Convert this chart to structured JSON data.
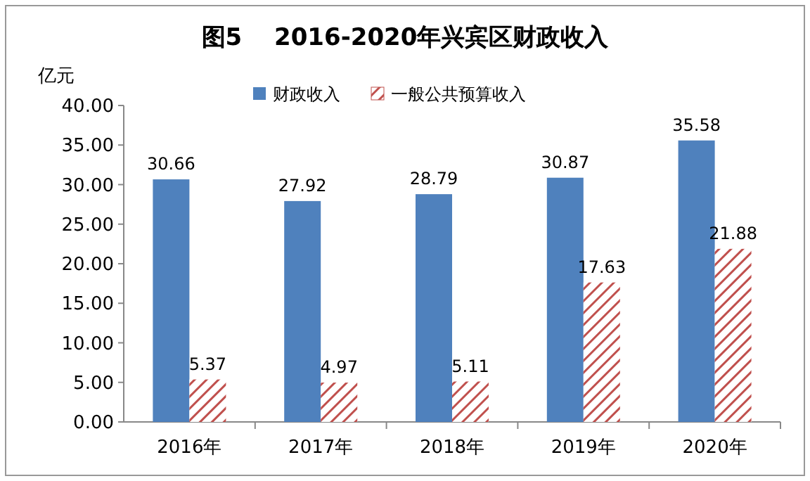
{
  "chart_data": {
    "type": "bar",
    "title": "图5　 2016-2020年兴宾区财政收入",
    "ylabel": "亿元",
    "categories": [
      "2016年",
      "2017年",
      "2018年",
      "2019年",
      "2020年"
    ],
    "series": [
      {
        "name": "财政收入",
        "color": "#4f81bd",
        "values": [
          30.66,
          27.92,
          28.79,
          30.87,
          35.58
        ]
      },
      {
        "name": "一般公共预算收入",
        "color": "#c0504d",
        "values": [
          5.37,
          4.97,
          5.11,
          17.63,
          21.88
        ]
      }
    ],
    "ylim": [
      0,
      40
    ],
    "yticks": [
      {
        "value": 0,
        "label": "0.00"
      },
      {
        "value": 5,
        "label": "5.00"
      },
      {
        "value": 10,
        "label": "10.00"
      },
      {
        "value": 15,
        "label": "15.00"
      },
      {
        "value": 20,
        "label": "20.00"
      },
      {
        "value": 25,
        "label": "25.00"
      },
      {
        "value": 30,
        "label": "30.00"
      },
      {
        "value": 35,
        "label": "35.00"
      },
      {
        "value": 40,
        "label": "40.00"
      }
    ],
    "legend": "top",
    "data_labels": true,
    "grid": false
  }
}
